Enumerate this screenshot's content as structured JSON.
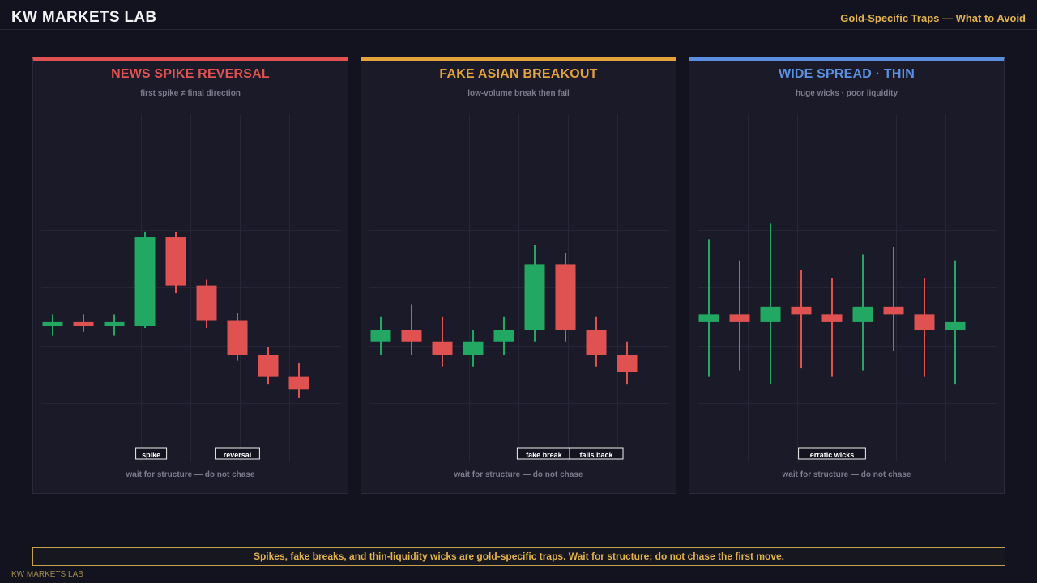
{
  "header": {
    "brand": "KW MARKETS LAB",
    "right_title": "Gold-Specific Traps — What to Avoid"
  },
  "colors": {
    "bull": "#22a862",
    "bear": "#e05252",
    "grid": "#252537",
    "accent_gold": "#e3b34c"
  },
  "panels": [
    {
      "title": "NEWS SPIKE REVERSAL",
      "subtitle": "first spike ≠ final direction",
      "footer": "wait for structure — do not chase",
      "accent": "#e05252",
      "annotations": [
        {
          "text": "spike",
          "at_candle": 3.2
        },
        {
          "text": "reversal",
          "at_candle": 6.0
        }
      ]
    },
    {
      "title": "FAKE ASIAN BREAKOUT",
      "subtitle": "low-volume break then fail",
      "footer": "wait for structure — do not chase",
      "accent": "#e3a23c",
      "annotations": [
        {
          "text": "fake break",
          "at_candle": 5.3
        },
        {
          "text": "fails back",
          "at_candle": 7.0
        }
      ]
    },
    {
      "title": "WIDE SPREAD · THIN",
      "subtitle": "huge wicks · poor liquidity",
      "footer": "wait for structure — do not chase",
      "accent": "#5b8fe0",
      "annotations": [
        {
          "text": "erratic wicks",
          "at_candle": 4.0
        }
      ]
    }
  ],
  "chart_data": [
    {
      "type": "candlestick",
      "title": "NEWS SPIKE REVERSAL",
      "ylim": [
        0,
        6
      ],
      "candles": [
        {
          "open": 2.0,
          "close": 2.1,
          "high": 2.3,
          "low": 1.75
        },
        {
          "open": 2.1,
          "close": 2.0,
          "high": 2.3,
          "low": 1.85
        },
        {
          "open": 2.0,
          "close": 2.1,
          "high": 2.3,
          "low": 1.75
        },
        {
          "open": 2.0,
          "close": 4.3,
          "high": 4.45,
          "low": 1.95
        },
        {
          "open": 4.3,
          "close": 3.05,
          "high": 4.45,
          "low": 2.85
        },
        {
          "open": 3.05,
          "close": 2.15,
          "high": 3.2,
          "low": 1.95
        },
        {
          "open": 2.15,
          "close": 1.25,
          "high": 2.35,
          "low": 1.1
        },
        {
          "open": 1.25,
          "close": 0.7,
          "high": 1.45,
          "low": 0.5
        },
        {
          "open": 0.7,
          "close": 0.35,
          "high": 1.05,
          "low": 0.15
        }
      ]
    },
    {
      "type": "candlestick",
      "title": "FAKE ASIAN BREAKOUT",
      "ylim": [
        0,
        6
      ],
      "candles": [
        {
          "open": 1.6,
          "close": 1.9,
          "high": 2.25,
          "low": 1.25
        },
        {
          "open": 1.9,
          "close": 1.6,
          "high": 2.55,
          "low": 1.25
        },
        {
          "open": 1.6,
          "close": 1.25,
          "high": 2.25,
          "low": 0.95
        },
        {
          "open": 1.25,
          "close": 1.6,
          "high": 1.9,
          "low": 0.95
        },
        {
          "open": 1.6,
          "close": 1.9,
          "high": 2.25,
          "low": 1.25
        },
        {
          "open": 1.9,
          "close": 3.6,
          "high": 4.1,
          "low": 1.6
        },
        {
          "open": 3.6,
          "close": 1.9,
          "high": 3.9,
          "low": 1.6
        },
        {
          "open": 1.9,
          "close": 1.25,
          "high": 2.25,
          "low": 0.95
        },
        {
          "open": 1.25,
          "close": 0.8,
          "high": 1.6,
          "low": 0.5
        }
      ]
    },
    {
      "type": "candlestick",
      "title": "WIDE SPREAD · THIN",
      "ylim": [
        0,
        6
      ],
      "candles": [
        {
          "open": 2.1,
          "close": 2.3,
          "high": 4.25,
          "low": 0.7
        },
        {
          "open": 2.3,
          "close": 2.1,
          "high": 3.7,
          "low": 0.85
        },
        {
          "open": 2.1,
          "close": 2.5,
          "high": 4.65,
          "low": 0.5
        },
        {
          "open": 2.5,
          "close": 2.3,
          "high": 3.45,
          "low": 0.9
        },
        {
          "open": 2.3,
          "close": 2.1,
          "high": 3.25,
          "low": 0.7
        },
        {
          "open": 2.1,
          "close": 2.5,
          "high": 3.85,
          "low": 0.85
        },
        {
          "open": 2.5,
          "close": 2.3,
          "high": 4.05,
          "low": 1.35
        },
        {
          "open": 2.3,
          "close": 1.9,
          "high": 3.25,
          "low": 0.7
        },
        {
          "open": 1.9,
          "close": 2.1,
          "high": 3.7,
          "low": 0.5
        }
      ]
    }
  ],
  "bottom_banner": "Spikes, fake breaks, and thin-liquidity wicks are gold-specific traps. Wait for structure; do not chase the first move.",
  "footer_brand": "KW MARKETS LAB"
}
